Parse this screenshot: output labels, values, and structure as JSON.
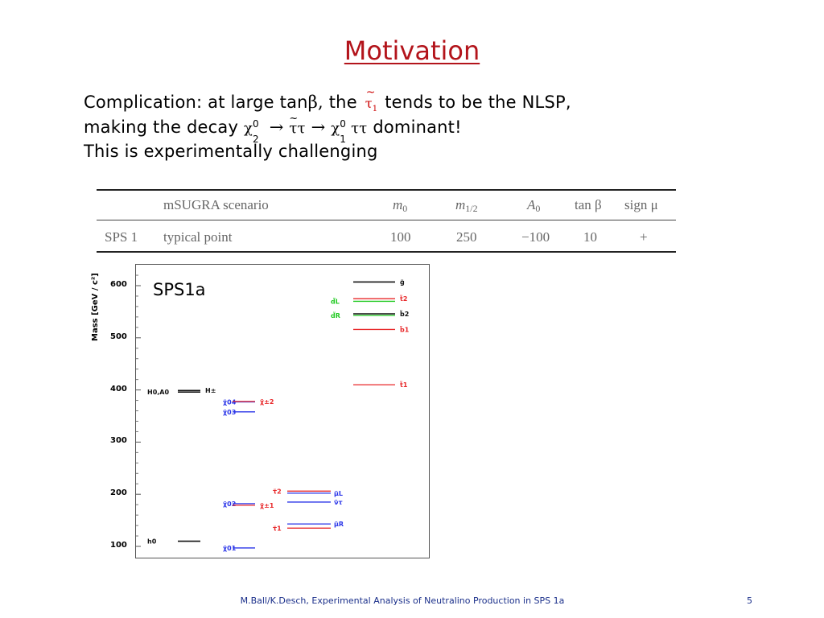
{
  "slide": {
    "title": "Motivation",
    "footer": "M.Ball/K.Desch, Experimental Analysis of Neutralino Production in SPS 1a",
    "page_number": "5"
  },
  "text": {
    "line1_a": "Complication: at large tan",
    "line1_beta": "β,",
    "line1_b": " the ",
    "line1_stau": "τ",
    "line1_stau_tilde": "~",
    "line1_stau_sub": "1",
    "line1_c": " tends to be the NLSP,",
    "line2_a": "making the decay ",
    "line2_chi": "χ",
    "line2_chi_sup": "0",
    "line2_chi_sub": "2",
    "line2_arrow1": " → ",
    "line2_tt1_tilde": "~",
    "line2_tt1": "ττ",
    "line2_arrow2": " → ",
    "line2_chi2": "χ",
    "line2_chi2_sup": "0",
    "line2_chi2_sub": "1",
    "line2_tt2": "ττ",
    "line2_c": " dominant!",
    "line3": "This is experimentally challenging"
  },
  "scenario_table": {
    "headers": [
      "mSUGRA scenario",
      "m",
      "0",
      "m",
      "1/2",
      "A",
      "0",
      "tan β",
      "sign μ"
    ],
    "row": [
      "SPS 1",
      "typical point",
      "100",
      "250",
      "−100",
      "10",
      "+"
    ]
  },
  "spectrum": {
    "label": "SPS1a",
    "ylabel": "Mass [GeV / c²]",
    "yticks": [
      "100",
      "200",
      "300",
      "400",
      "500",
      "600"
    ],
    "ylim": [
      85,
      640
    ],
    "colors": {
      "black": "#111111",
      "red": "#e8282a",
      "blue": "#2a35e8",
      "green": "#1fc91f"
    },
    "levels": [
      {
        "name": "g̃",
        "mass": 607,
        "color": "black",
        "col": "squark",
        "label": "g̃",
        "side": "right"
      },
      {
        "name": "t̃2",
        "mass": 575,
        "color": "red",
        "col": "squark",
        "label": "t̃2",
        "side": "right"
      },
      {
        "name": "d̃L",
        "mass": 570,
        "color": "green",
        "col": "squark",
        "label": "d̃L",
        "side": "left"
      },
      {
        "name": "b̃2",
        "mass": 546,
        "color": "black",
        "col": "squark",
        "label": "b̃2",
        "side": "right"
      },
      {
        "name": "d̃R",
        "mass": 546,
        "color": "green",
        "col": "squark",
        "label": "d̃R",
        "side": "left"
      },
      {
        "name": "b̃1",
        "mass": 516,
        "color": "red",
        "col": "squark",
        "label": "b̃1",
        "side": "right"
      },
      {
        "name": "t̃1",
        "mass": 410,
        "color": "red",
        "col": "squark",
        "label": "t̃1",
        "side": "right"
      },
      {
        "name": "H0,A0",
        "mass": 396,
        "color": "black",
        "col": "higgs",
        "label": "H0,A0",
        "side": "left"
      },
      {
        "name": "H±",
        "mass": 399,
        "color": "black",
        "col": "higgs",
        "label": "H±",
        "side": "right"
      },
      {
        "name": "χ̃04",
        "mass": 377,
        "color": "blue",
        "col": "gaugino",
        "label": "χ̃04",
        "side": "left"
      },
      {
        "name": "χ̃±2",
        "mass": 378,
        "color": "red",
        "col": "gaugino",
        "label": "χ̃±2",
        "side": "right"
      },
      {
        "name": "χ̃03",
        "mass": 358,
        "color": "blue",
        "col": "gaugino",
        "label": "χ̃03",
        "side": "left"
      },
      {
        "name": "τ̃2",
        "mass": 206,
        "color": "red",
        "col": "slepton",
        "label": "τ̃2",
        "side": "left"
      },
      {
        "name": "μ̃L",
        "mass": 202,
        "color": "blue",
        "col": "slepton",
        "label": "μ̃L",
        "side": "right"
      },
      {
        "name": "ν̃τ",
        "mass": 185,
        "color": "blue",
        "col": "slepton",
        "label": "ν̃τ",
        "side": "right"
      },
      {
        "name": "χ̃02",
        "mass": 182,
        "color": "blue",
        "col": "gaugino",
        "label": "χ̃02",
        "side": "left"
      },
      {
        "name": "χ̃±1",
        "mass": 182,
        "color": "red",
        "col": "gaugino",
        "label": "χ̃±1",
        "side": "right"
      },
      {
        "name": "μ̃R",
        "mass": 143,
        "color": "blue",
        "col": "slepton",
        "label": "μ̃R",
        "side": "right"
      },
      {
        "name": "τ̃1",
        "mass": 135,
        "color": "red",
        "col": "slepton",
        "label": "τ̃1",
        "side": "left"
      },
      {
        "name": "h0",
        "mass": 110,
        "color": "black",
        "col": "higgs",
        "label": "h0",
        "side": "left"
      },
      {
        "name": "χ̃01",
        "mass": 97,
        "color": "blue",
        "col": "gaugino",
        "label": "χ̃01",
        "side": "left"
      }
    ]
  }
}
